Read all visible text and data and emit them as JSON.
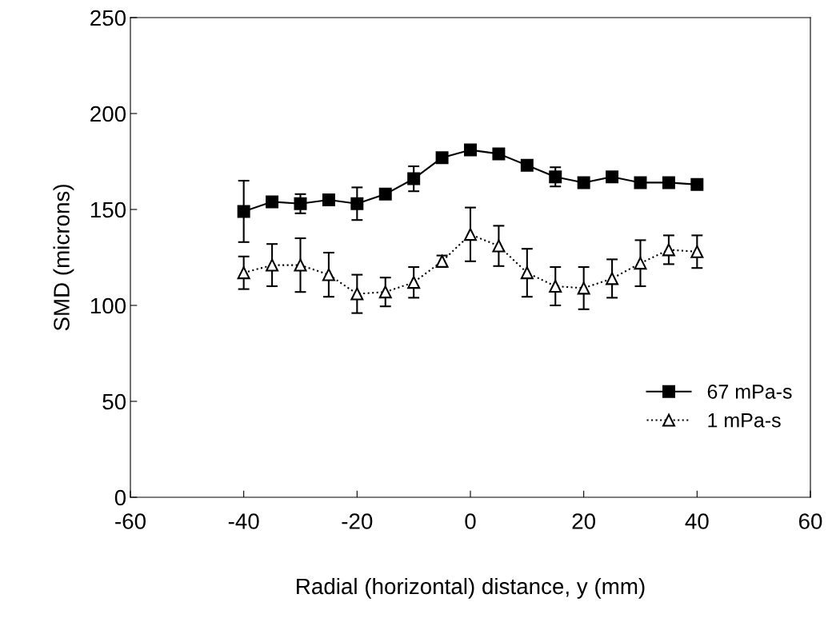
{
  "chart_data": {
    "type": "line",
    "xlabel": "Radial (horizontal) distance, y (mm)",
    "ylabel": "SMD (microns)",
    "x": [
      -40,
      -35,
      -30,
      -25,
      -20,
      -15,
      -10,
      -5,
      0,
      5,
      10,
      15,
      20,
      25,
      30,
      35,
      40
    ],
    "series": [
      {
        "name": "67 mPa-s",
        "color": "#000000",
        "marker": "square",
        "line_style": "solid",
        "values": [
          149,
          154,
          153,
          155,
          153,
          158,
          166,
          177,
          181,
          179,
          173,
          167,
          164,
          167,
          164,
          164,
          163
        ],
        "errors": [
          16,
          null,
          5,
          null,
          8.5,
          null,
          6.5,
          null,
          null,
          null,
          null,
          5,
          null,
          2,
          null,
          null,
          null
        ]
      },
      {
        "name": "1 mPa-s",
        "color": "#000000",
        "marker": "triangle",
        "line_style": "dotted",
        "values": [
          117,
          121,
          121,
          116,
          106,
          107,
          112,
          123,
          137,
          131,
          117,
          110,
          109,
          114,
          122,
          129,
          128
        ],
        "errors": [
          8.5,
          11,
          14,
          11.5,
          10,
          7.5,
          8,
          3,
          14,
          10.5,
          12.5,
          10,
          11,
          10,
          12,
          7.5,
          8.5
        ]
      }
    ],
    "xlim": [
      -60,
      60
    ],
    "xticks": [
      -60,
      -40,
      -20,
      0,
      20,
      40,
      60
    ],
    "ylim": [
      0,
      250
    ],
    "yticks": [
      0,
      50,
      100,
      150,
      200,
      250
    ],
    "grid": false,
    "legend": "lower right"
  }
}
